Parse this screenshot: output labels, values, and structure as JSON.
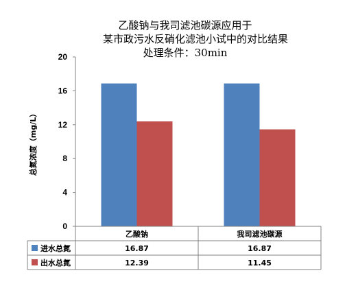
{
  "chart_data": {
    "type": "bar",
    "title_lines": [
      "乙酸钠与我司滤池碳源应用于",
      "某市政污水反硝化滤池小试中的对比结果",
      "处理条件：30min"
    ],
    "ylabel": "总氮浓度（mg/L）",
    "ylim": [
      0,
      20
    ],
    "yticks": [
      0,
      4,
      8,
      12,
      16,
      20
    ],
    "categories": [
      "乙酸钠",
      "我司滤池碳源"
    ],
    "series": [
      {
        "name": "进水总氮",
        "color": "#4f81bd",
        "values": [
          16.87,
          16.87
        ],
        "labels": [
          "16.87",
          "16.87"
        ]
      },
      {
        "name": "出水总氮",
        "color": "#c0504d",
        "values": [
          12.39,
          11.45
        ],
        "labels": [
          "12.39",
          "11.45"
        ]
      }
    ],
    "grid": false,
    "legend": "data-table-bottom"
  }
}
